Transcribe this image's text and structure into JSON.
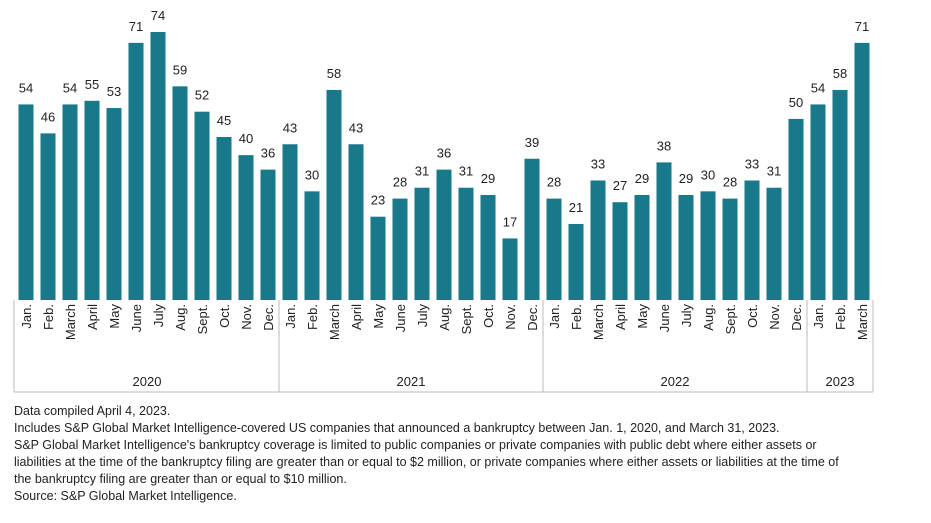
{
  "chart_data": {
    "type": "bar",
    "color": "#17798a",
    "groups": [
      {
        "name": "2020",
        "categories": [
          "Jan.",
          "Feb.",
          "March",
          "April",
          "May",
          "June",
          "July",
          "Aug.",
          "Sept.",
          "Oct.",
          "Nov.",
          "Dec."
        ],
        "values": [
          54,
          46,
          54,
          55,
          53,
          71,
          74,
          59,
          52,
          45,
          40,
          36
        ]
      },
      {
        "name": "2021",
        "categories": [
          "Jan.",
          "Feb.",
          "March",
          "April",
          "May",
          "June",
          "July",
          "Aug.",
          "Sept.",
          "Oct.",
          "Nov.",
          "Dec."
        ],
        "values": [
          43,
          30,
          58,
          43,
          23,
          28,
          31,
          36,
          31,
          29,
          17,
          39
        ]
      },
      {
        "name": "2022",
        "categories": [
          "Jan.",
          "Feb.",
          "March",
          "April",
          "May",
          "June",
          "July",
          "Aug.",
          "Sept.",
          "Oct.",
          "Nov.",
          "Dec."
        ],
        "values": [
          28,
          21,
          33,
          27,
          29,
          38,
          29,
          30,
          28,
          33,
          31,
          50
        ]
      },
      {
        "name": "2023",
        "categories": [
          "Jan.",
          "Feb.",
          "March"
        ],
        "values": [
          54,
          58,
          71
        ]
      }
    ]
  },
  "footnotes": [
    "Data compiled April 4, 2023.",
    "Includes S&P Global Market Intelligence-covered US companies that announced a bankruptcy between Jan. 1, 2020, and March 31, 2023.",
    "S&P Global Market Intelligence's bankruptcy coverage is limited to public companies or private companies with public debt where either assets or liabilities at the time of the bankruptcy filing are greater than or equal to $2 million, or private companies where either assets or liabilities at the time of the bankruptcy filing are greater than or equal to $10 million.",
    "Source: S&P Global Market Intelligence."
  ]
}
